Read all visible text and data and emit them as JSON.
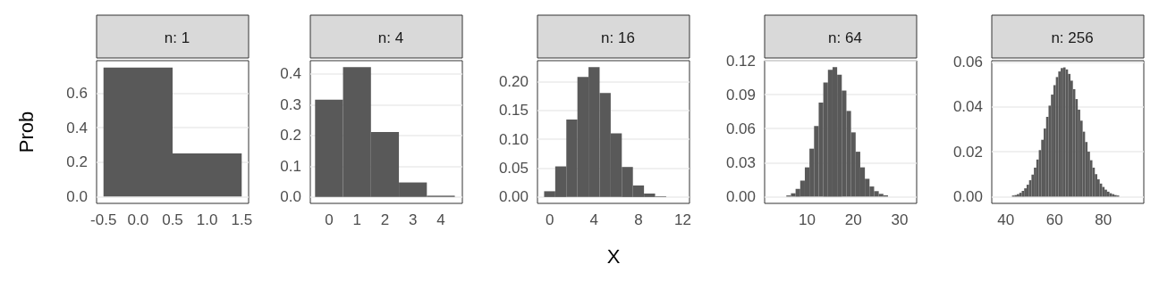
{
  "chart_data": [
    {
      "type": "histogram",
      "title": "n: 1",
      "ylabel": "Prob",
      "color": "#595959",
      "grid": "y",
      "bins": [
        -0.5,
        0.5,
        1.5
      ],
      "values": [
        0.75,
        0.25
      ],
      "xlim": [
        -0.6,
        1.6
      ],
      "xticks": [
        {
          "value": -0.5,
          "label": "-0.5"
        },
        {
          "value": 0,
          "label": "0.0"
        },
        0.5,
        {
          "value": 1,
          "label": "1.0"
        },
        1.5
      ],
      "ylim": [
        -0.04,
        0.79
      ],
      "yticks": [
        {
          "value": 0,
          "label": "0.0"
        },
        0.2,
        0.4,
        0.6
      ]
    },
    {
      "type": "histogram",
      "title": "n: 4",
      "color": "#595959",
      "grid": "y",
      "bins": [
        -0.5,
        0.5,
        1.5,
        2.5,
        3.5,
        4.5
      ],
      "values": [
        0.316,
        0.422,
        0.211,
        0.047,
        0.004
      ],
      "xlim": [
        -0.67,
        4.77
      ],
      "xticks": [
        0,
        1,
        2,
        3,
        4
      ],
      "ylim": [
        -0.021,
        0.443
      ],
      "yticks": [
        {
          "value": 0,
          "label": "0.0"
        },
        0.1,
        0.2,
        0.3,
        0.4
      ]
    },
    {
      "type": "histogram",
      "title": "n: 16",
      "xlabel": "X",
      "color": "#595959",
      "grid": "y",
      "bins": [
        -0.5,
        0.5,
        1.5,
        2.5,
        3.5,
        4.5,
        5.5,
        6.5,
        7.5,
        8.5,
        9.5,
        10.5,
        11.5
      ],
      "values": [
        0.01,
        0.053,
        0.134,
        0.208,
        0.225,
        0.18,
        0.11,
        0.052,
        0.02,
        0.006,
        0.001,
        null
      ],
      "xlim": [
        -1.1,
        12.6
      ],
      "xticks": [
        0,
        4,
        8,
        12
      ],
      "ylim": [
        -0.011,
        0.236
      ],
      "yticks": [
        {
          "value": 0,
          "label": "0.00"
        },
        0.05,
        {
          "value": 0.1,
          "label": "0.10"
        },
        0.15,
        {
          "value": 0.2,
          "label": "0.20"
        }
      ]
    },
    {
      "type": "histogram",
      "title": "n: 64",
      "color": "#595959",
      "grid": "y",
      "bins": [
        4.5,
        5.5,
        6.5,
        7.5,
        8.5,
        9.5,
        10.5,
        11.5,
        12.5,
        13.5,
        14.5,
        15.5,
        16.5,
        17.5,
        18.5,
        19.5,
        20.5,
        21.5,
        22.5,
        23.5,
        24.5,
        25.5,
        26.5,
        27.5,
        28.5
      ],
      "values": [
        null,
        0.001,
        0.0029,
        0.0068,
        0.0141,
        0.0258,
        0.0423,
        0.0623,
        0.083,
        0.1008,
        0.112,
        0.1143,
        0.1076,
        0.0936,
        0.0756,
        0.0567,
        0.0396,
        0.0258,
        0.0157,
        0.0089,
        0.0048,
        0.0024,
        0.0011,
        null
      ],
      "xlim": [
        0.8,
        33.7
      ],
      "xticks": [
        10,
        20,
        30
      ],
      "ylim": [
        -0.006,
        0.12
      ],
      "yticks": [
        {
          "value": 0,
          "label": "0.00"
        },
        0.03,
        0.06,
        0.09,
        0.12
      ]
    },
    {
      "type": "histogram",
      "title": "n: 256",
      "color": "#595959",
      "grid": "y",
      "bins": [
        41.5,
        42.5,
        43.5,
        44.5,
        45.5,
        46.5,
        47.5,
        48.5,
        49.5,
        50.5,
        51.5,
        52.5,
        53.5,
        54.5,
        55.5,
        56.5,
        57.5,
        58.5,
        59.5,
        60.5,
        61.5,
        62.5,
        63.5,
        64.5,
        65.5,
        66.5,
        67.5,
        68.5,
        69.5,
        70.5,
        71.5,
        72.5,
        73.5,
        74.5,
        75.5,
        76.5,
        77.5,
        78.5,
        79.5,
        80.5,
        81.5,
        82.5,
        83.5,
        84.5,
        85.5,
        86.5,
        87.5,
        88.5
      ],
      "values": [
        null,
        0.0005,
        0.0007,
        0.0011,
        0.0017,
        0.0026,
        0.0037,
        0.0053,
        0.0073,
        0.0098,
        0.0129,
        0.0165,
        0.0207,
        0.0253,
        0.0303,
        0.0355,
        0.0405,
        0.0454,
        0.0496,
        0.0532,
        0.0557,
        0.0572,
        0.0575,
        0.0566,
        0.0546,
        0.0516,
        0.0478,
        0.0434,
        0.0387,
        0.0338,
        0.0289,
        0.0243,
        0.02,
        0.0162,
        0.0129,
        0.01,
        0.0077,
        0.0058,
        0.0043,
        0.0031,
        0.0022,
        0.0015,
        0.0011,
        0.0007,
        0.0005,
        null,
        null
      ],
      "xlim": [
        34.2,
        96.6
      ],
      "xticks": [
        40,
        60,
        80
      ],
      "ylim": [
        -0.003,
        0.0605
      ],
      "yticks": [
        {
          "value": 0,
          "label": "0.00"
        },
        0.02,
        0.04,
        0.06
      ]
    }
  ]
}
